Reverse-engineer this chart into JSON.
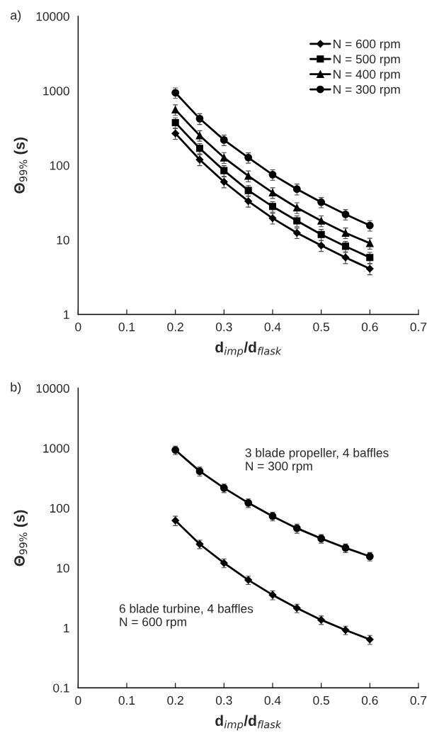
{
  "chart_data": [
    {
      "type": "line",
      "title": "a)",
      "xlabel": "d$_{imp}$/d$_{flask}$",
      "ylabel": "Θ$_{99%}$ (s)",
      "log": "y",
      "xlim": [
        0,
        0.7
      ],
      "xticks": [
        0,
        0.1,
        0.2,
        0.3,
        0.4,
        0.5,
        0.6,
        0.7
      ],
      "ylim": [
        1,
        10000
      ],
      "yticks": [
        1,
        10,
        100,
        1000,
        10000
      ],
      "legend": "top right",
      "grid": false,
      "x": [
        0.2,
        0.25,
        0.3,
        0.35,
        0.4,
        0.45,
        0.5,
        0.55,
        0.6
      ],
      "series": [
        {
          "name": "N = 600 rpm",
          "color": "#000000",
          "marker": "diamond",
          "values": [
            268,
            119,
            60,
            33,
            19.5,
            12.4,
            8.4,
            5.8,
            4.1
          ],
          "errors": [
            45,
            20,
            10,
            5.5,
            3.2,
            2,
            1.4,
            1,
            0.7
          ]
        },
        {
          "name": "N = 500 rpm",
          "color": "#000000",
          "marker": "square",
          "values": [
            373,
            169,
            85,
            46,
            28,
            18,
            11.8,
            8.2,
            5.8
          ],
          "errors": [
            60,
            27,
            14,
            7.5,
            4.5,
            3,
            2,
            1.3,
            1
          ]
        },
        {
          "name": "N = 400 rpm",
          "color": "#000000",
          "marker": "triangle",
          "values": [
            558,
            251,
            127,
            72,
            43,
            27,
            18,
            12.4,
            9.0
          ],
          "errors": [
            90,
            40,
            21,
            12,
            7,
            4.5,
            3,
            2,
            1.5
          ]
        },
        {
          "name": "N = 300 rpm",
          "color": "#000000",
          "marker": "circle",
          "values": [
            942,
            423,
            219,
            127,
            75,
            48,
            32,
            22,
            15.6
          ],
          "errors": [
            150,
            70,
            35,
            20,
            12,
            8,
            5,
            3.5,
            2.5
          ]
        }
      ]
    },
    {
      "type": "line",
      "title": "b)",
      "xlabel": "d$_{imp}$/d$_{flask}$",
      "ylabel": "Θ$_{99%}$ (s)",
      "log": "y",
      "xlim": [
        0,
        0.7
      ],
      "xticks": [
        0,
        0.1,
        0.2,
        0.3,
        0.4,
        0.5,
        0.6,
        0.7
      ],
      "ylim": [
        0.1,
        10000
      ],
      "yticks": [
        0.1,
        1,
        10,
        100,
        1000,
        10000
      ],
      "grid": false,
      "annotations": [
        "3 blade propeller, 4 baffles\nN = 300 rpm",
        "6 blade turbine, 4 baffles\nN = 600 rpm"
      ],
      "x": [
        0.2,
        0.25,
        0.3,
        0.35,
        0.4,
        0.45,
        0.5,
        0.55,
        0.6
      ],
      "series": [
        {
          "color": "#000000",
          "marker": "circle",
          "values": [
            929,
            412,
            216,
            122,
            73,
            46,
            31,
            21.6,
            15.6
          ],
          "errors": [
            150,
            70,
            35,
            20,
            12,
            8,
            5,
            3.5,
            2.5
          ]
        },
        {
          "color": "#000000",
          "marker": "diamond",
          "values": [
            62,
            25,
            12.1,
            6.3,
            3.55,
            2.14,
            1.36,
            0.92,
            0.64
          ],
          "errors": [
            11,
            4,
            2,
            1,
            0.6,
            0.35,
            0.22,
            0.15,
            0.11
          ]
        }
      ]
    }
  ]
}
